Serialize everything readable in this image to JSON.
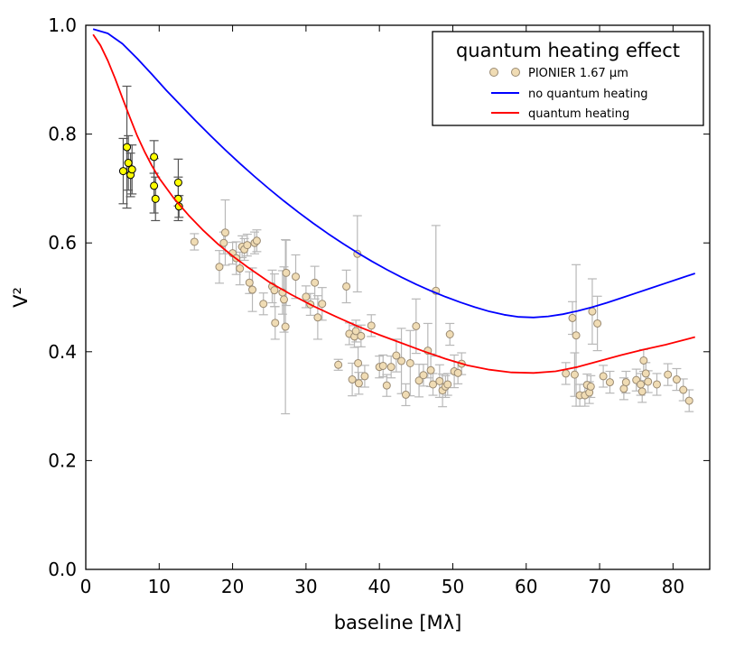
{
  "chart_data": {
    "type": "scatter",
    "title": "",
    "xlabel": "baseline [Mλ]",
    "ylabel": "V²",
    "xlim": [
      0,
      85
    ],
    "ylim": [
      0,
      1.0
    ],
    "xticks": [
      0,
      10,
      20,
      30,
      40,
      50,
      60,
      70,
      80
    ],
    "yticks": [
      0.0,
      0.2,
      0.4,
      0.6,
      0.8,
      1.0
    ],
    "xtick_labels": [
      "0",
      "10",
      "20",
      "30",
      "40",
      "50",
      "60",
      "70",
      "80"
    ],
    "ytick_labels": [
      "0.0",
      "0.2",
      "0.4",
      "0.6",
      "0.8",
      "1.0"
    ],
    "legend": {
      "title": "quantum heating effect",
      "position": "top-right",
      "entries": [
        {
          "label": "PIONIER 1.67 µm",
          "kind": "marker",
          "color": "#f0dcb4"
        },
        {
          "label": "no quantum heating",
          "kind": "line",
          "color": "#0000ff"
        },
        {
          "label": "quantum heating",
          "kind": "line",
          "color": "#ff0000"
        }
      ]
    },
    "colors": {
      "pionier_fill": "#f0dcb4",
      "pionier_edge": "#9a8a72",
      "pionier_err": "#b8b8b8",
      "highlight_fill": "#ffff00",
      "highlight_edge": "#000000",
      "highlight_err": "#555555",
      "no_qh": "#0000ff",
      "qh": "#ff0000"
    },
    "series": [
      {
        "name": "no quantum heating",
        "kind": "line",
        "x": [
          1,
          3,
          5,
          7,
          9,
          11,
          13,
          15,
          17,
          19,
          21,
          23,
          25,
          27,
          29,
          31,
          33,
          35,
          37,
          39,
          41,
          43,
          45,
          47,
          49,
          51,
          53,
          55,
          57,
          59,
          61,
          63,
          65,
          67,
          69,
          71,
          73,
          75,
          77,
          79,
          81,
          83
        ],
        "y": [
          0.993,
          0.985,
          0.966,
          0.939,
          0.91,
          0.88,
          0.852,
          0.824,
          0.797,
          0.771,
          0.746,
          0.722,
          0.699,
          0.677,
          0.656,
          0.636,
          0.617,
          0.599,
          0.582,
          0.566,
          0.551,
          0.537,
          0.524,
          0.512,
          0.501,
          0.491,
          0.482,
          0.474,
          0.468,
          0.464,
          0.463,
          0.465,
          0.469,
          0.475,
          0.482,
          0.49,
          0.499,
          0.508,
          0.517,
          0.526,
          0.535,
          0.544
        ]
      },
      {
        "name": "quantum heating",
        "kind": "line",
        "x": [
          1,
          2,
          3,
          4,
          5,
          6,
          7,
          8,
          9,
          10,
          12,
          14,
          16,
          18,
          20,
          22,
          25,
          28,
          31,
          34,
          37,
          40,
          43,
          46,
          49,
          52,
          55,
          58,
          61,
          64,
          67,
          70,
          73,
          76,
          79,
          83
        ],
        "y": [
          0.983,
          0.963,
          0.935,
          0.902,
          0.866,
          0.831,
          0.797,
          0.768,
          0.742,
          0.719,
          0.682,
          0.651,
          0.623,
          0.598,
          0.576,
          0.556,
          0.528,
          0.505,
          0.484,
          0.465,
          0.447,
          0.431,
          0.416,
          0.401,
          0.387,
          0.375,
          0.367,
          0.362,
          0.361,
          0.364,
          0.372,
          0.383,
          0.394,
          0.404,
          0.413,
          0.427
        ]
      },
      {
        "name": "highlighted data",
        "kind": "errorbar",
        "x": [
          5.1,
          5.6,
          5.8,
          6.1,
          6.3,
          9.3,
          9.3,
          9.5,
          12.6,
          12.6,
          12.7
        ],
        "y": [
          0.732,
          0.776,
          0.747,
          0.725,
          0.735,
          0.758,
          0.705,
          0.681,
          0.711,
          0.681,
          0.667
        ],
        "err": [
          0.06,
          0.112,
          0.05,
          0.04,
          0.045,
          0.03,
          0.05,
          0.04,
          0.043,
          0.04,
          0.02
        ]
      },
      {
        "name": "PIONIER 1.67 µm",
        "kind": "errorbar",
        "x": [
          14.8,
          18.2,
          18.8,
          19.0,
          20.0,
          20.5,
          21.0,
          21.3,
          21.6,
          22.0,
          22.3,
          22.7,
          23.0,
          23.3,
          24.2,
          25.4,
          25.7,
          25.8,
          26.8,
          27.0,
          27.2,
          27.3,
          28.6,
          30.0,
          30.6,
          31.2,
          31.6,
          32.2,
          34.4,
          35.5,
          35.9,
          36.3,
          36.6,
          36.8,
          37.0,
          37.1,
          37.2,
          37.5,
          38.0,
          38.9,
          40.0,
          40.5,
          41.0,
          41.6,
          42.3,
          43.0,
          43.6,
          44.2,
          45.0,
          45.4,
          46.0,
          46.6,
          47.0,
          47.3,
          47.7,
          48.2,
          48.6,
          49.0,
          49.3,
          49.6,
          50.2,
          50.7,
          51.2,
          65.4,
          66.3,
          66.6,
          66.8,
          67.3,
          68.0,
          68.3,
          68.6,
          68.8,
          69.0,
          69.7,
          70.5,
          71.4,
          73.3,
          73.6,
          75.0,
          75.6,
          75.8,
          76.0,
          76.3,
          76.6,
          77.8,
          79.3,
          80.5,
          81.4,
          82.2
        ],
        "y": [
          0.602,
          0.556,
          0.6,
          0.619,
          0.581,
          0.572,
          0.553,
          0.593,
          0.588,
          0.596,
          0.527,
          0.514,
          0.6,
          0.604,
          0.488,
          0.52,
          0.513,
          0.453,
          0.509,
          0.496,
          0.446,
          0.545,
          0.538,
          0.501,
          0.487,
          0.527,
          0.463,
          0.488,
          0.376,
          0.52,
          0.433,
          0.349,
          0.428,
          0.438,
          0.58,
          0.379,
          0.342,
          0.429,
          0.355,
          0.448,
          0.372,
          0.374,
          0.338,
          0.372,
          0.393,
          0.383,
          0.321,
          0.379,
          0.447,
          0.347,
          0.357,
          0.402,
          0.366,
          0.34,
          0.512,
          0.346,
          0.329,
          0.336,
          0.34,
          0.432,
          0.364,
          0.361,
          0.378,
          0.36,
          0.462,
          0.358,
          0.43,
          0.32,
          0.32,
          0.339,
          0.325,
          0.336,
          0.474,
          0.452,
          0.355,
          0.344,
          0.332,
          0.344,
          0.348,
          0.34,
          0.327,
          0.384,
          0.36,
          0.345,
          0.34,
          0.358,
          0.349,
          0.33,
          0.31
        ],
        "err": [
          0.015,
          0.03,
          0.02,
          0.06,
          0.02,
          0.03,
          0.03,
          0.02,
          0.02,
          0.02,
          0.02,
          0.04,
          0.02,
          0.02,
          0.02,
          0.03,
          0.03,
          0.03,
          0.04,
          0.06,
          0.16,
          0.06,
          0.04,
          0.02,
          0.02,
          0.03,
          0.04,
          0.03,
          0.01,
          0.03,
          0.02,
          0.03,
          0.02,
          0.02,
          0.07,
          0.03,
          0.02,
          0.02,
          0.02,
          0.02,
          0.02,
          0.02,
          0.02,
          0.02,
          0.03,
          0.06,
          0.02,
          0.06,
          0.05,
          0.03,
          0.02,
          0.05,
          0.03,
          0.02,
          0.12,
          0.03,
          0.03,
          0.02,
          0.02,
          0.02,
          0.03,
          0.02,
          0.02,
          0.02,
          0.03,
          0.04,
          0.13,
          0.02,
          0.02,
          0.02,
          0.02,
          0.02,
          0.06,
          0.05,
          0.02,
          0.02,
          0.02,
          0.02,
          0.02,
          0.02,
          0.02,
          0.02,
          0.02,
          0.02,
          0.02,
          0.02,
          0.02,
          0.02,
          0.02
        ]
      }
    ]
  }
}
